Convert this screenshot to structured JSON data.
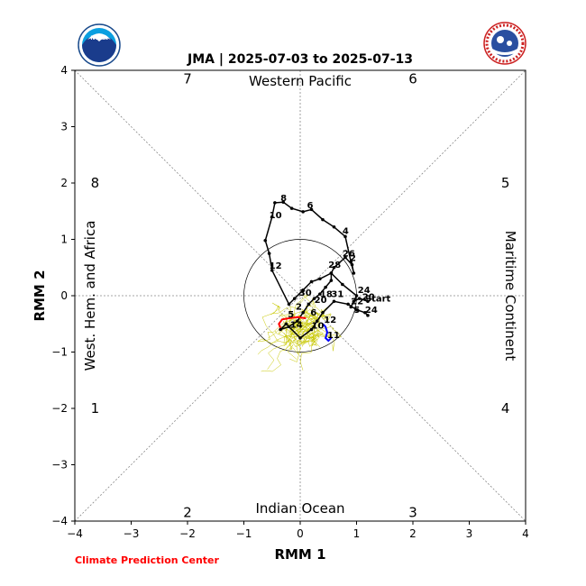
{
  "title": "JMA | 2025-07-03 to 2025-07-13",
  "credit": "Climate Prediction Center",
  "colors": {
    "observed": "#000000",
    "ensemble": "#c8c800",
    "mean_red": "#ff0000",
    "mean_blue": "#0000ff",
    "credit": "#ff0000"
  },
  "logos": {
    "left": "NOAA",
    "right": "NATIONAL WEATHER SERVICE"
  },
  "chart_data": {
    "type": "line",
    "title": "JMA | 2025-07-03 to 2025-07-13",
    "xlabel": "RMM 1",
    "ylabel": "RMM 2",
    "xlim": [
      -4,
      4
    ],
    "ylim": [
      -4,
      4
    ],
    "xticks": [
      "−4",
      "−3",
      "−2",
      "−1",
      "0",
      "1",
      "2",
      "3",
      "4"
    ],
    "yticks": [
      "−4",
      "−3",
      "−2",
      "−1",
      "0",
      "1",
      "2",
      "3",
      "4"
    ],
    "unit_circle_radius": 1,
    "regions": {
      "top": "Western Pacific",
      "bottom": "Indian Ocean",
      "left": "West. Hem. and Africa",
      "right": "Maritime Continent"
    },
    "phases": [
      {
        "label": "1",
        "x": -3.85,
        "y": -2.0
      },
      {
        "label": "2",
        "x": -2.0,
        "y": -3.85
      },
      {
        "label": "3",
        "x": 2.0,
        "y": -3.85
      },
      {
        "label": "4",
        "x": 3.85,
        "y": -2.0
      },
      {
        "label": "5",
        "x": 3.85,
        "y": 2.0
      },
      {
        "label": "6",
        "x": 2.0,
        "y": 3.85
      },
      {
        "label": "7",
        "x": -2.0,
        "y": 3.85
      },
      {
        "label": "8",
        "x": -3.85,
        "y": 2.0
      }
    ],
    "observed": {
      "x": [
        1.2,
        1.05,
        0.95,
        0.9,
        1.0,
        0.75,
        0.55,
        0.35,
        0.2,
        0.05,
        -0.1,
        -0.2,
        -0.5,
        -0.55,
        -0.62,
        -0.5,
        -0.45,
        -0.3,
        -0.15,
        0.05,
        0.2,
        0.4,
        0.6,
        0.8,
        0.9,
        0.95,
        0.92,
        0.8,
        0.6,
        0.55,
        0.55,
        0.45,
        0.35,
        0.25,
        0.15,
        0.05,
        -0.05,
        -0.2,
        -0.35,
        -0.25,
        0.0,
        0.2,
        0.3,
        0.4,
        0.6,
        0.85,
        1.0,
        1.15,
        1.2
      ],
      "y": [
        -0.1,
        -0.05,
        -0.1,
        -0.2,
        0.0,
        0.2,
        0.4,
        0.3,
        0.25,
        0.1,
        -0.05,
        -0.15,
        0.45,
        0.75,
        0.98,
        1.4,
        1.65,
        1.66,
        1.55,
        1.49,
        1.53,
        1.35,
        1.22,
        1.05,
        0.6,
        0.4,
        0.55,
        0.68,
        0.5,
        0.4,
        0.27,
        0.15,
        0.03,
        -0.05,
        -0.15,
        -0.3,
        -0.45,
        -0.55,
        -0.6,
        -0.5,
        -0.75,
        -0.6,
        -0.45,
        -0.3,
        -0.1,
        -0.15,
        -0.25,
        -0.3,
        -0.35
      ]
    },
    "observed_labels": [
      {
        "text": "Start",
        "x": 1.15,
        "y": -0.1
      },
      {
        "text": "8",
        "x": -0.35,
        "y": 1.68
      },
      {
        "text": "6",
        "x": 0.12,
        "y": 1.55
      },
      {
        "text": "4",
        "x": 0.75,
        "y": 1.1
      },
      {
        "text": "10",
        "x": -0.55,
        "y": 1.38
      },
      {
        "text": "26",
        "x": 0.75,
        "y": 0.7
      },
      {
        "text": "2",
        "x": 0.88,
        "y": 0.62
      },
      {
        "text": "28",
        "x": 0.5,
        "y": 0.5
      },
      {
        "text": "12",
        "x": -0.55,
        "y": 0.48
      },
      {
        "text": "24",
        "x": 1.02,
        "y": 0.05
      },
      {
        "text": "30",
        "x": -0.02,
        "y": 0.0
      },
      {
        "text": "18",
        "x": 0.35,
        "y": -0.02
      },
      {
        "text": "31",
        "x": 0.55,
        "y": -0.02
      },
      {
        "text": "20",
        "x": 1.1,
        "y": -0.07
      },
      {
        "text": "20",
        "x": 0.25,
        "y": -0.13
      },
      {
        "text": "22",
        "x": 0.9,
        "y": -0.15
      },
      {
        "text": "2",
        "x": -0.08,
        "y": -0.25
      },
      {
        "text": "6",
        "x": 0.18,
        "y": -0.35
      },
      {
        "text": "5",
        "x": 0.95,
        "y": -0.3
      },
      {
        "text": "24",
        "x": 1.15,
        "y": -0.3
      },
      {
        "text": "5",
        "x": -0.22,
        "y": -0.38
      },
      {
        "text": "12",
        "x": 0.42,
        "y": -0.48
      },
      {
        "text": "14",
        "x": -0.18,
        "y": -0.57
      },
      {
        "text": "10",
        "x": 0.2,
        "y": -0.58
      },
      {
        "text": "11",
        "x": 0.48,
        "y": -0.75
      }
    ],
    "ensemble_mean_red": {
      "x": [
        0.1,
        -0.05,
        -0.2,
        -0.32,
        -0.38,
        -0.35
      ],
      "y": [
        -0.4,
        -0.38,
        -0.4,
        -0.42,
        -0.5,
        -0.57
      ]
    },
    "ensemble_mean_blue": {
      "x": [
        0.4,
        0.45,
        0.48,
        0.45,
        0.5,
        0.55
      ],
      "y": [
        -0.5,
        -0.55,
        -0.65,
        -0.75,
        -0.8,
        -0.75
      ]
    },
    "ensemble_center": {
      "x": 0.05,
      "y": -0.5
    }
  }
}
